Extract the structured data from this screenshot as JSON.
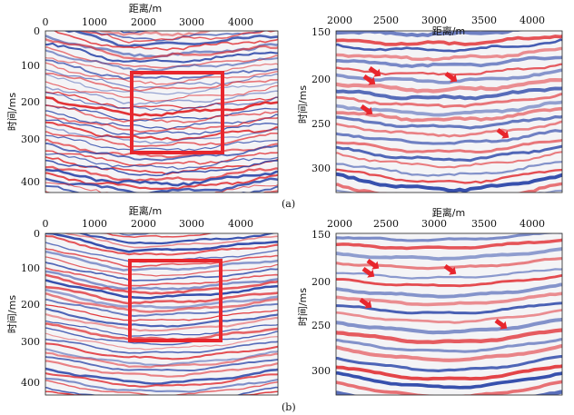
{
  "figure": {
    "panels": [
      {
        "id": "a-left",
        "x_axis": {
          "label": "距离/m",
          "ticks": [
            "0",
            "1000",
            "2000",
            "3000",
            "4000"
          ]
        },
        "y_axis": {
          "label": "时间/ms",
          "ticks": [
            "0",
            "100",
            "200",
            "300",
            "400"
          ]
        },
        "highlight_box": {
          "label": "red rectangle"
        }
      },
      {
        "id": "a-right",
        "x_axis": {
          "label": "距离/m",
          "ticks": [
            "2000",
            "2500",
            "3000",
            "3500",
            "4000"
          ]
        },
        "y_axis": {
          "label": "时间/ms",
          "ticks": [
            "150",
            "200",
            "250",
            "300"
          ]
        },
        "arrow_count": 4
      },
      {
        "id": "b-left",
        "x_axis": {
          "label": "距离/m",
          "ticks": [
            "0",
            "1000",
            "2000",
            "3000",
            "4000"
          ]
        },
        "y_axis": {
          "label": "时间/ms",
          "ticks": [
            "0",
            "100",
            "200",
            "300",
            "400"
          ]
        },
        "highlight_box": {
          "label": "red rectangle"
        }
      },
      {
        "id": "b-right",
        "x_axis": {
          "label": "距离/m",
          "ticks": [
            "2000",
            "2500",
            "3000",
            "3500",
            "4000"
          ]
        },
        "y_axis": {
          "label": "时间/ms",
          "ticks": [
            "150",
            "200",
            "250",
            "300"
          ]
        },
        "arrow_count": 4
      }
    ],
    "row_labels": [
      "(a)",
      "(b)"
    ],
    "colors": {
      "positive": "#e0262b",
      "negative": "#2a45a8",
      "highlight": "#e8262d",
      "background": "#ffffff"
    }
  }
}
